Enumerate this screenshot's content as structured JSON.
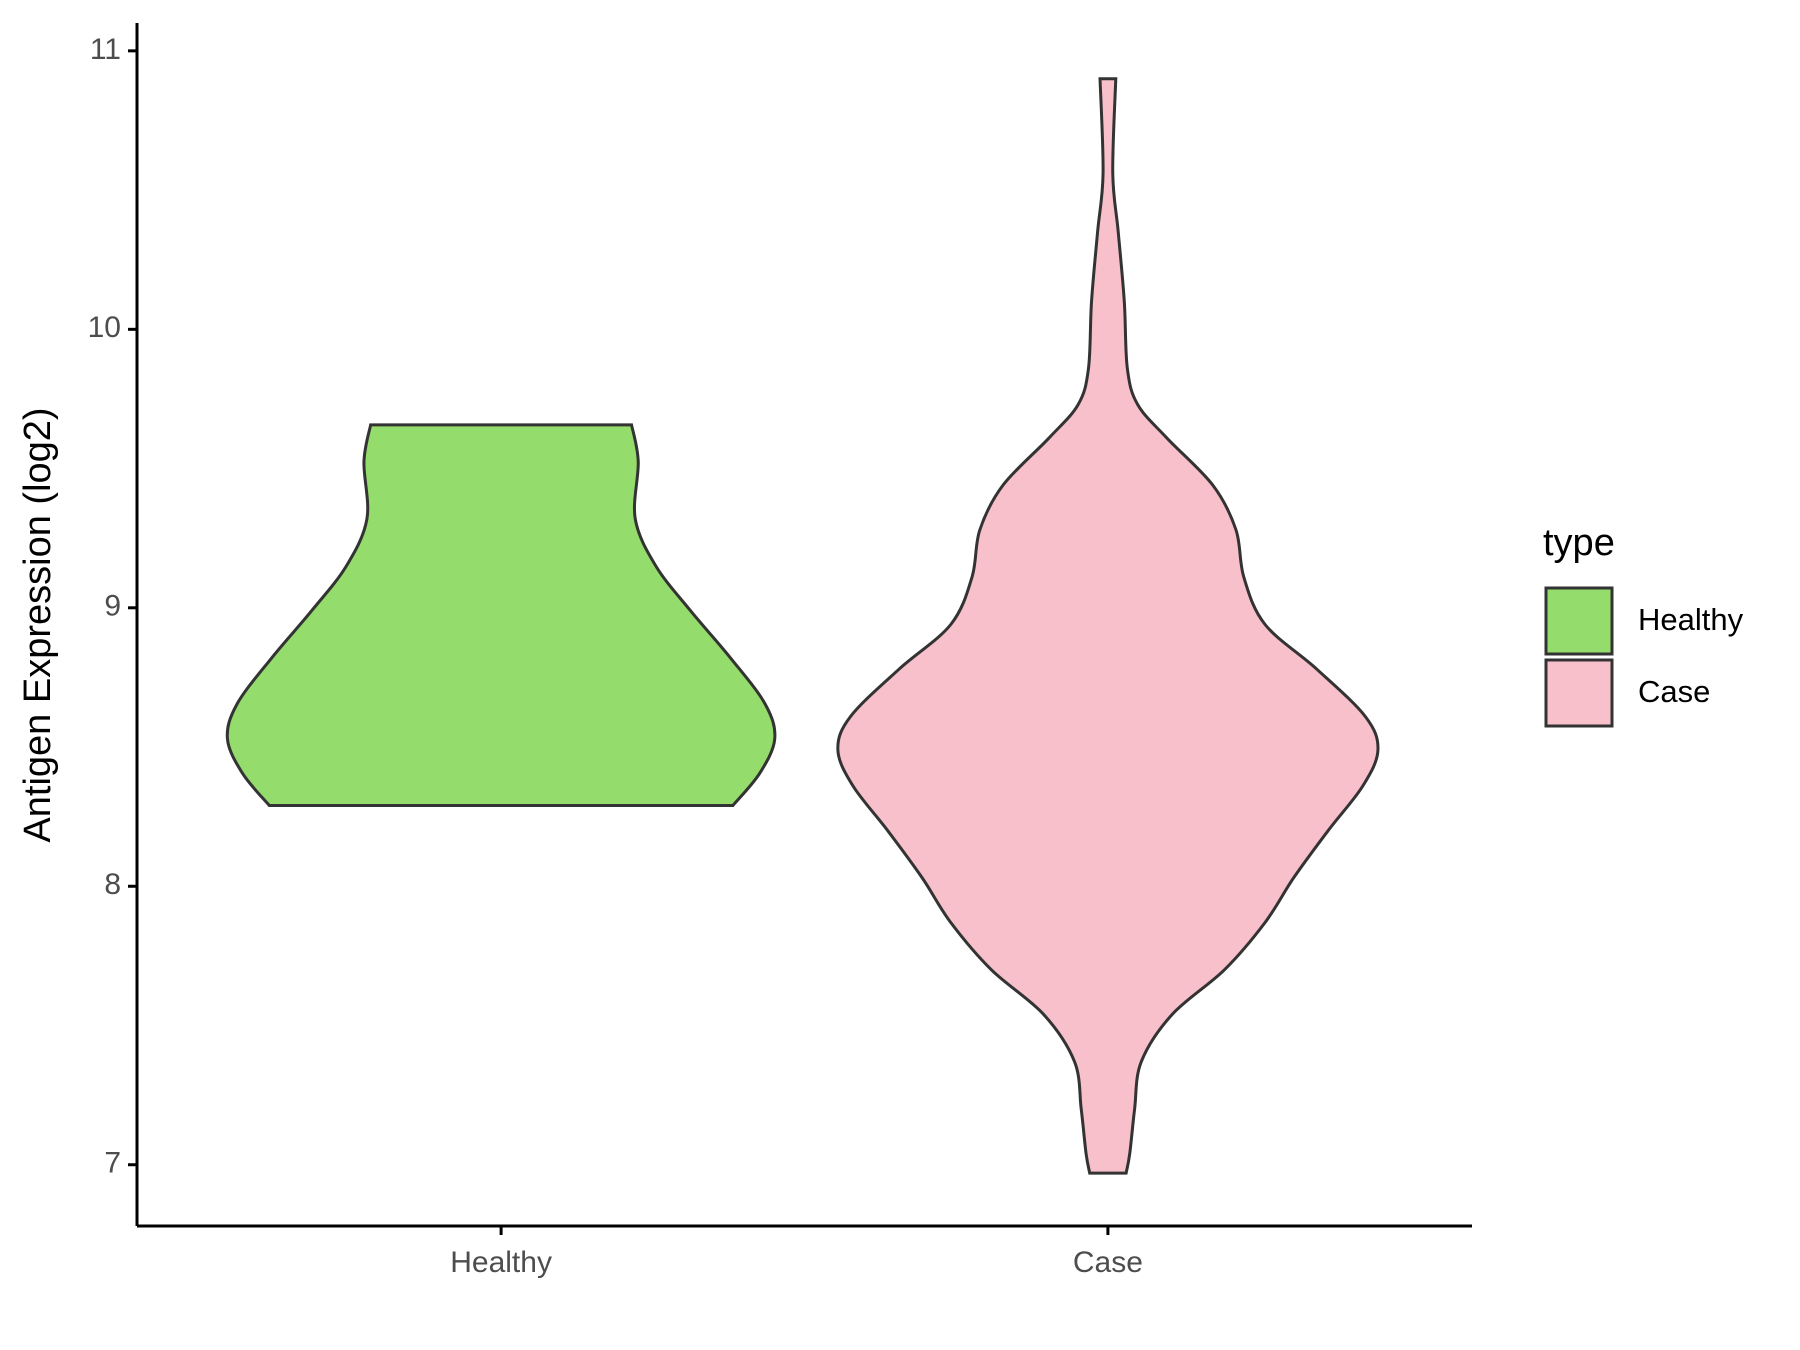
{
  "chart_data": {
    "type": "violin",
    "y_label": "Antigen Expression (log2)",
    "categories": [
      "Healthy",
      "Case"
    ],
    "legend_title": "type",
    "legend_position": "right",
    "ylim": [
      6.78,
      11.1
    ],
    "yticks": [
      7,
      8,
      9,
      10,
      11
    ],
    "series": [
      {
        "name": "Healthy",
        "color": "#94dc6b",
        "y": [
          9.657,
          9.525,
          9.32,
          9.15,
          8.99,
          8.82,
          8.655,
          8.53,
          8.405,
          8.29
        ],
        "half_width": [
          0.215,
          0.226,
          0.221,
          0.255,
          0.312,
          0.378,
          0.435,
          0.451,
          0.426,
          0.382
        ]
      },
      {
        "name": "Case",
        "color": "#f7c0cb",
        "y": [
          10.9,
          10.56,
          10.35,
          10.1,
          9.86,
          9.73,
          9.61,
          9.44,
          9.28,
          9.11,
          8.94,
          8.78,
          8.61,
          8.49,
          8.36,
          8.2,
          8.03,
          7.87,
          7.7,
          7.54,
          7.37,
          7.2,
          7.04,
          6.97
        ],
        "half_width": [
          0.013,
          0.008,
          0.017,
          0.027,
          0.032,
          0.049,
          0.097,
          0.173,
          0.211,
          0.224,
          0.259,
          0.344,
          0.424,
          0.445,
          0.42,
          0.363,
          0.306,
          0.259,
          0.192,
          0.106,
          0.055,
          0.044,
          0.036,
          0.03
        ]
      }
    ]
  }
}
